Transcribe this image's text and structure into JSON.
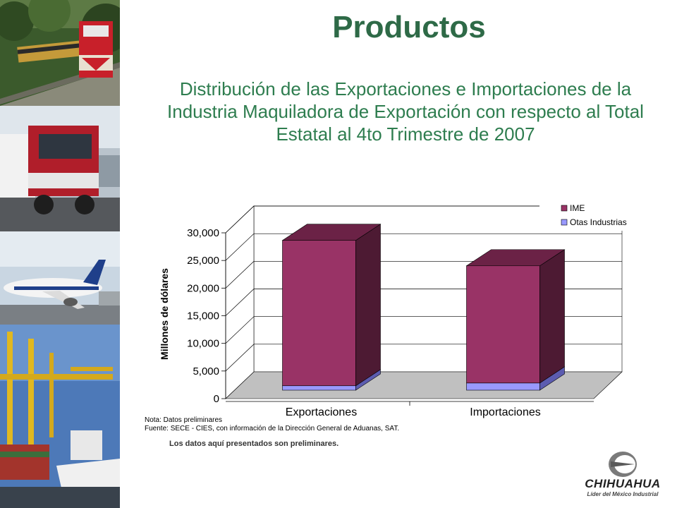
{
  "page": {
    "title": "Productos",
    "subtitle": "Distribución de las Exportaciones e Importaciones de la Industria Maquiladora de Exportación con respecto al Total Estatal al 4to Trimestre de 2007",
    "note_line1": "Nota: Datos preliminares",
    "note_line2": "Fuente: SECE - CIES, con información de la Dirección General de Aduanas, SAT.",
    "disclaimer": "Los datos aquí presentados son preliminares.",
    "logo_name": "CHIHUAHUA",
    "logo_tagline": "Líder del México Industrial"
  },
  "photos": [
    "train-photo",
    "truck-photo",
    "airplane-photo",
    "port-ship-photo"
  ],
  "colors": {
    "ime": "#993366",
    "ime_side": "#4d1a33",
    "otras": "#9999ff",
    "otras_side": "#5c5cb0",
    "title": "#2e6a47",
    "subtitle": "#2e7d4f"
  },
  "chart_data": {
    "type": "bar",
    "stacked": true,
    "three_d": true,
    "categories": [
      "Exportaciones",
      "Importaciones"
    ],
    "series": [
      {
        "name": "Otas Industrias",
        "values": [
          800,
          1300
        ]
      },
      {
        "name": "IME",
        "values": [
          26300,
          21200
        ]
      }
    ],
    "ylabel": "Millones de dólares",
    "ylim": [
      0,
      30000
    ],
    "yticks": [
      "0",
      "5,000",
      "10,000",
      "15,000",
      "20,000",
      "25,000",
      "30,000"
    ],
    "grid": true,
    "legend": "top-right"
  }
}
